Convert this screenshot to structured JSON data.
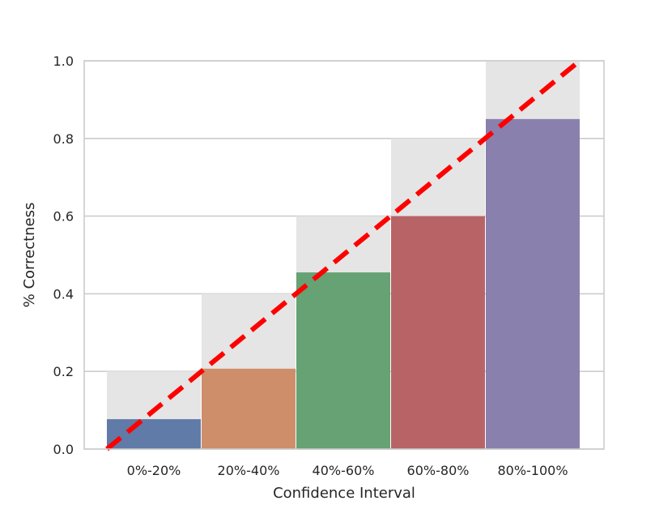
{
  "chart_data": {
    "type": "bar",
    "title": "",
    "xlabel": "Confidence Interval",
    "ylabel": "% Correctness",
    "ylim": [
      0,
      1.0
    ],
    "yticks": [
      "0.0",
      "0.2",
      "0.4",
      "0.6",
      "0.8",
      "1.0"
    ],
    "grid": true,
    "categories": [
      "0%-20%",
      "20%-40%",
      "40%-60%",
      "60%-80%",
      "80%-100%"
    ],
    "series": [
      {
        "name": "",
        "values": [
          0.077,
          0.207,
          0.455,
          0.6,
          0.85
        ],
        "colors": [
          "#5975a4",
          "#cc8963",
          "#5f9e6e",
          "#b55d60",
          "#857aab"
        ]
      }
    ],
    "expected_values": [
      0.2,
      0.4,
      0.6,
      0.8,
      1.0
    ],
    "expected_color": "#e5e5e5",
    "diagonal": {
      "from": [
        0,
        0
      ],
      "to": [
        1,
        1
      ],
      "color": "#ff0000",
      "style": "dashed"
    },
    "bar_opacity": 0.95
  }
}
